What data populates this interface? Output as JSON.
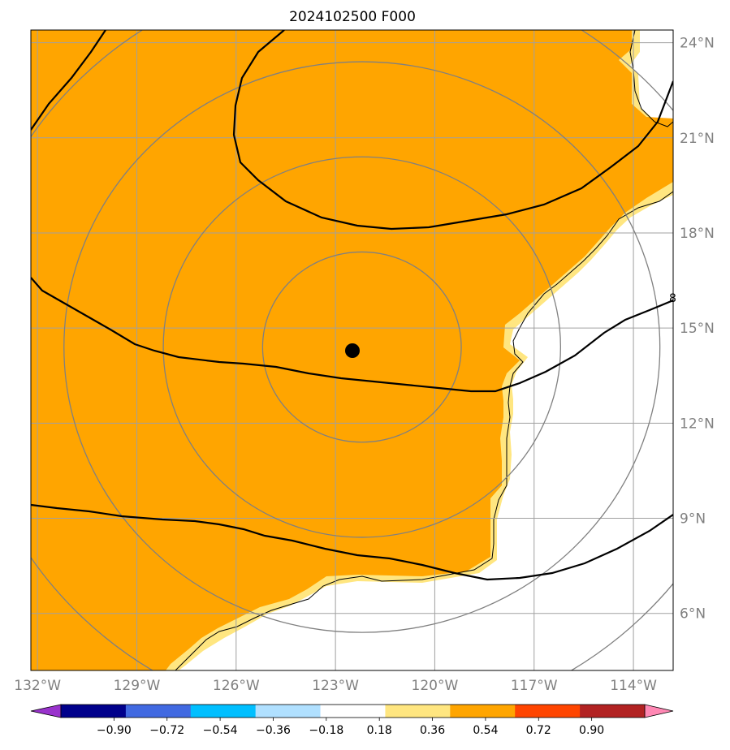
{
  "title": "2024102500 F000",
  "map": {
    "projection": "PlateCarree",
    "lon_range": [
      -132.2,
      -112.8
    ],
    "lat_range": [
      4.2,
      24.4
    ],
    "storm_center": {
      "lon": -122.2,
      "lat": 14.4
    },
    "range_ring_radii_deg": [
      3,
      6,
      9,
      12
    ],
    "gridlines": true,
    "gridline_color": "#a0a0a0",
    "ring_color": "#808080",
    "land_fill_color": "#ffffff",
    "ocean_fill_color": "#ffa500",
    "ocean_edge_color": "#ffe680",
    "coastline_color": "#000000",
    "contour_color": "#000000",
    "lon_ticks": [
      {
        "value": -132,
        "label": "132°W"
      },
      {
        "value": -129,
        "label": "129°W"
      },
      {
        "value": -126,
        "label": "126°W"
      },
      {
        "value": -123,
        "label": "123°W"
      },
      {
        "value": -120,
        "label": "120°W"
      },
      {
        "value": -117,
        "label": "117°W"
      },
      {
        "value": -114,
        "label": "114°W"
      }
    ],
    "lat_ticks": [
      {
        "value": 24,
        "label": "24°N"
      },
      {
        "value": 21,
        "label": "21°N"
      },
      {
        "value": 18,
        "label": "18°N"
      },
      {
        "value": 15,
        "label": "15°N"
      },
      {
        "value": 12,
        "label": "12°N"
      },
      {
        "value": 9,
        "label": "9°N"
      },
      {
        "value": 6,
        "label": "6°N"
      }
    ],
    "contour_label": "8"
  },
  "colorbar": {
    "orientation": "horizontal",
    "extend": "both",
    "boundaries": [
      -0.9,
      -0.72,
      -0.54,
      -0.36,
      -0.18,
      0.18,
      0.36,
      0.54,
      0.72,
      0.9
    ],
    "labels": [
      "−0.90",
      "−0.72",
      "−0.54",
      "−0.36",
      "−0.18",
      "0.18",
      "0.36",
      "0.54",
      "0.72",
      "0.90"
    ],
    "colors": [
      "#9932cc",
      "#00008b",
      "#4169e1",
      "#00bfff",
      "#b0e0ff",
      "#ffffff",
      "#ffe680",
      "#ffa500",
      "#ff4500",
      "#b22222",
      "#ff88b4"
    ]
  }
}
